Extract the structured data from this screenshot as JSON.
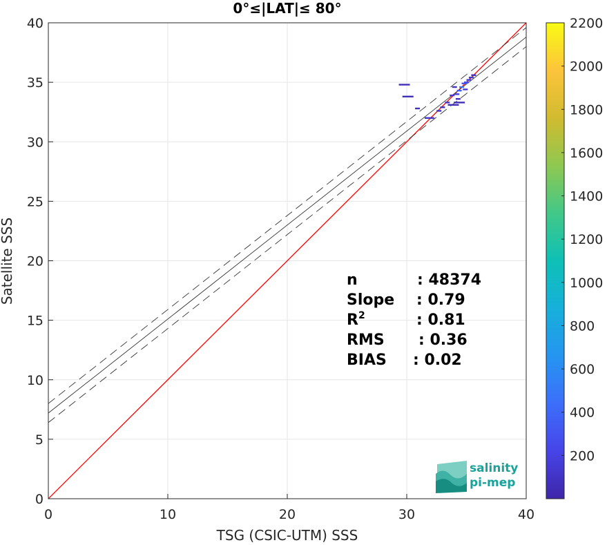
{
  "chart_data": {
    "type": "scatter",
    "title": "0°≤|LAT|≤ 80°",
    "xlabel": "TSG (CSIC-UTM) SSS",
    "ylabel": "Satellite SSS",
    "xlim": [
      0,
      40
    ],
    "ylim": [
      0,
      40
    ],
    "xticks": [
      "0",
      "10",
      "20",
      "30",
      "40"
    ],
    "yticks": [
      "0",
      "5",
      "10",
      "15",
      "20",
      "25",
      "30",
      "35",
      "40"
    ],
    "grid": true,
    "lines": {
      "identity": {
        "color": "#ff0000",
        "x": [
          0,
          40
        ],
        "y": [
          0,
          40
        ]
      },
      "fit": {
        "color": "#333333",
        "x": [
          0,
          40
        ],
        "y": [
          7.2,
          38.8
        ]
      },
      "fit_upper": {
        "color": "#333333",
        "dash": true,
        "x": [
          0,
          40
        ],
        "y": [
          8.0,
          39.6
        ]
      },
      "fit_lower": {
        "color": "#333333",
        "dash": true,
        "x": [
          0,
          40
        ],
        "y": [
          6.4,
          38.0
        ]
      }
    },
    "points": [
      {
        "x": 29.8,
        "y": 34.8,
        "c": 60
      },
      {
        "x": 30.1,
        "y": 33.8,
        "c": 60
      },
      {
        "x": 30.9,
        "y": 32.8,
        "c": 70
      },
      {
        "x": 31.7,
        "y": 32.0,
        "c": 120
      },
      {
        "x": 32.1,
        "y": 32.0,
        "c": 90
      },
      {
        "x": 32.7,
        "y": 32.6,
        "c": 80
      },
      {
        "x": 33.0,
        "y": 32.9,
        "c": 80
      },
      {
        "x": 33.4,
        "y": 33.3,
        "c": 100
      },
      {
        "x": 33.8,
        "y": 33.9,
        "c": 150
      },
      {
        "x": 34.0,
        "y": 34.6,
        "c": 90
      },
      {
        "x": 34.2,
        "y": 34.0,
        "c": 200
      },
      {
        "x": 34.3,
        "y": 33.6,
        "c": 70
      },
      {
        "x": 34.4,
        "y": 34.3,
        "c": 350
      },
      {
        "x": 34.6,
        "y": 34.6,
        "c": 500
      },
      {
        "x": 34.8,
        "y": 34.9,
        "c": 300
      },
      {
        "x": 34.9,
        "y": 34.4,
        "c": 150
      },
      {
        "x": 35.0,
        "y": 35.0,
        "c": 250
      },
      {
        "x": 35.2,
        "y": 35.2,
        "c": 180
      },
      {
        "x": 35.4,
        "y": 35.4,
        "c": 120
      },
      {
        "x": 35.6,
        "y": 35.6,
        "c": 80
      },
      {
        "x": 34.4,
        "y": 33.3,
        "c": 60
      },
      {
        "x": 33.9,
        "y": 33.1,
        "c": 60
      }
    ],
    "colorbar": {
      "min": 0,
      "max": 2200,
      "ticks": [
        "200",
        "400",
        "600",
        "800",
        "1000",
        "1200",
        "1400",
        "1600",
        "1800",
        "2000",
        "2200"
      ],
      "colors": [
        "#3e26a8",
        "#4744e8",
        "#3c6ffb",
        "#2595f0",
        "#17b0da",
        "#0ec0b6",
        "#42c888",
        "#8fc851",
        "#d1bb2f",
        "#fcc43b",
        "#f9fb14"
      ]
    },
    "stats": [
      {
        "label": "n",
        "value": ": 48374"
      },
      {
        "label": "Slope",
        "value": ": 0.79"
      },
      {
        "label": "R",
        "sup": "2",
        "value": ": 0.81"
      },
      {
        "label": "RMS",
        "value": ": 0.36"
      },
      {
        "label": "BIAS",
        "value": ": 0.02"
      }
    ]
  },
  "logo": {
    "line1": "salinity",
    "line2": "pi-mep"
  }
}
